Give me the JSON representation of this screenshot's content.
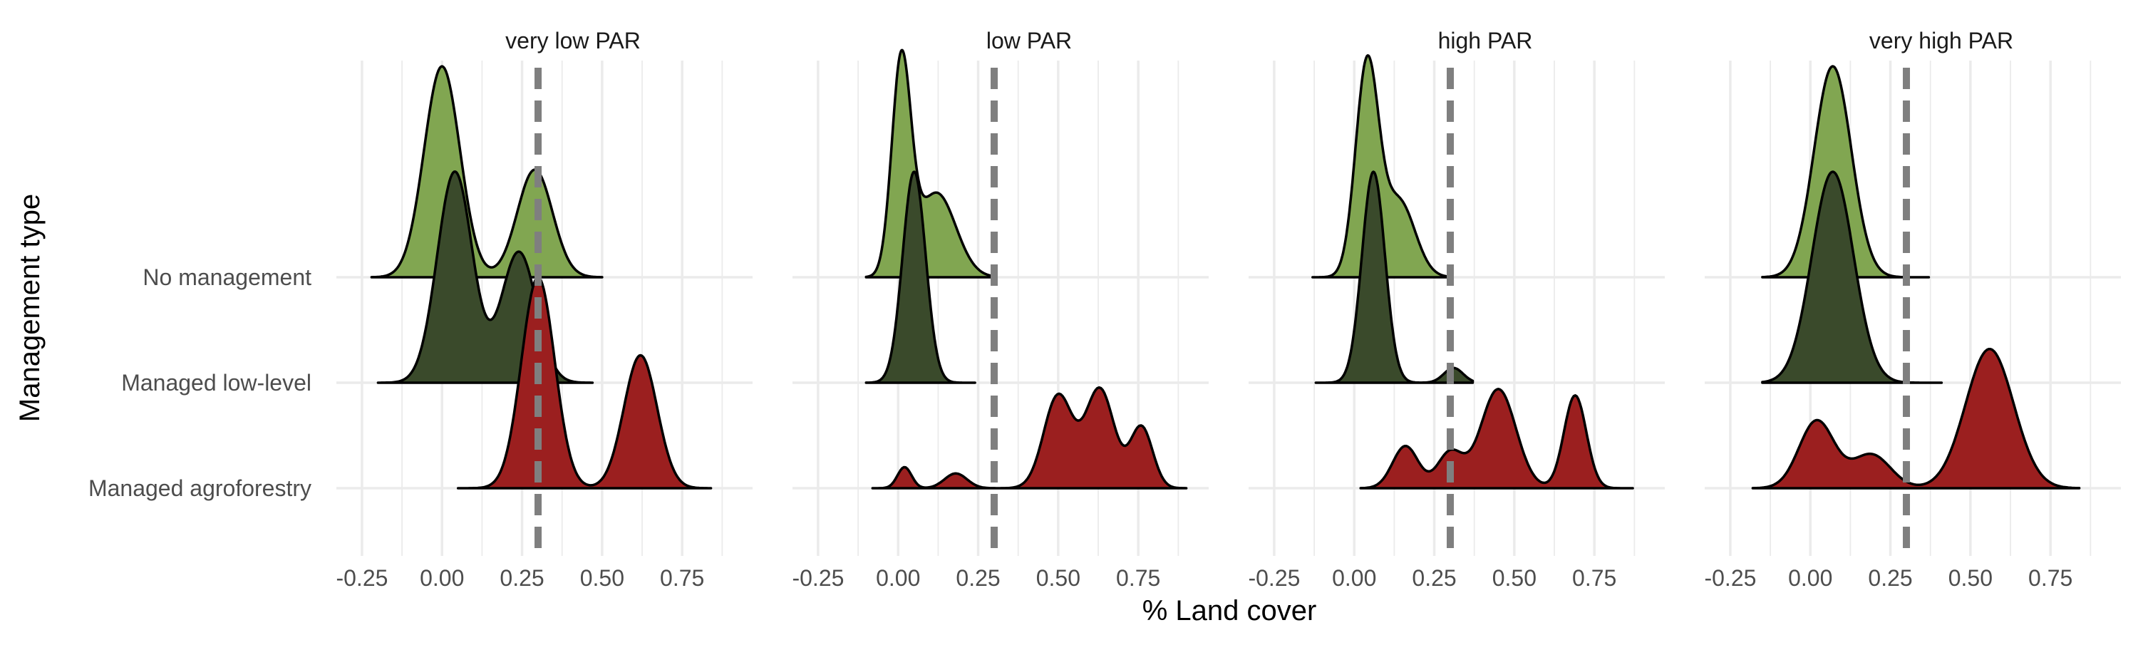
{
  "chart_data": {
    "type": "ridgeline",
    "x_axis": {
      "label": "% Land cover",
      "ticks": [
        -0.25,
        0.0,
        0.25,
        0.5,
        0.75
      ],
      "tick_labels": [
        "-0.25",
        "0.00",
        "0.25",
        "0.50",
        "0.75"
      ],
      "range": [
        -0.33,
        0.97
      ]
    },
    "y_axis": {
      "label": "Management type",
      "categories": [
        "Managed agroforestry",
        "Managed low-level",
        "No management"
      ]
    },
    "facets": [
      "very low PAR",
      "low PAR",
      "high PAR",
      "very high PAR"
    ],
    "reference_line_x": 0.3,
    "grid": true,
    "colors": {
      "No management": "#81a651",
      "Managed low-level": "#3a4a2b",
      "Managed agroforestry": "#9b1f1f",
      "reference_line": "#7f7f7f"
    },
    "panels": [
      {
        "facet": "very low PAR",
        "ridges": [
          {
            "category": "No management",
            "range": [
              -0.22,
              0.5
            ],
            "peaks": [
              [
                0.0,
                0.056,
                1.0
              ],
              [
                0.29,
                0.055,
                0.51
              ]
            ]
          },
          {
            "category": "Managed low-level",
            "range": [
              -0.2,
              0.47
            ],
            "peaks": [
              [
                0.04,
                0.055,
                1.0
              ],
              [
                0.24,
                0.055,
                0.62
              ]
            ]
          },
          {
            "category": "Managed agroforestry",
            "range": [
              0.05,
              0.84
            ],
            "peaks": [
              [
                0.3,
                0.052,
                1.0
              ],
              [
                0.62,
                0.052,
                0.63
              ]
            ]
          }
        ]
      },
      {
        "facet": "low PAR",
        "ridges": [
          {
            "category": "No management",
            "range": [
              -0.1,
              0.3
            ],
            "peaks": [
              [
                0.01,
                0.03,
                1.0
              ],
              [
                0.12,
                0.06,
                0.4
              ]
            ]
          },
          {
            "category": "Managed low-level",
            "range": [
              -0.1,
              0.24
            ],
            "peaks": [
              [
                0.05,
                0.036,
                1.0
              ]
            ]
          },
          {
            "category": "Managed agroforestry",
            "range": [
              -0.08,
              0.9
            ],
            "peaks": [
              [
                0.02,
                0.022,
                0.1
              ],
              [
                0.18,
                0.035,
                0.07
              ],
              [
                0.5,
                0.045,
                0.44
              ],
              [
                0.63,
                0.045,
                0.47
              ],
              [
                0.76,
                0.035,
                0.29
              ]
            ]
          }
        ]
      },
      {
        "facet": "high PAR",
        "ridges": [
          {
            "category": "No management",
            "range": [
              -0.13,
              0.3
            ],
            "peaks": [
              [
                0.04,
                0.036,
                1.0
              ],
              [
                0.14,
                0.05,
                0.36
              ]
            ]
          },
          {
            "category": "Managed low-level",
            "range": [
              -0.12,
              0.37
            ],
            "peaks": [
              [
                0.06,
                0.036,
                1.0
              ],
              [
                0.31,
                0.03,
                0.07
              ]
            ]
          },
          {
            "category": "Managed agroforestry",
            "range": [
              0.02,
              0.87
            ],
            "peaks": [
              [
                0.16,
                0.04,
                0.2
              ],
              [
                0.3,
                0.04,
                0.17
              ],
              [
                0.45,
                0.055,
                0.47
              ],
              [
                0.69,
                0.035,
                0.44
              ]
            ]
          }
        ]
      },
      {
        "facet": "very high PAR",
        "ridges": [
          {
            "category": "No management",
            "range": [
              -0.15,
              0.37
            ],
            "peaks": [
              [
                0.07,
                0.058,
                1.0
              ]
            ]
          },
          {
            "category": "Managed low-level",
            "range": [
              -0.15,
              0.41
            ],
            "peaks": [
              [
                0.07,
                0.065,
                1.0
              ]
            ]
          },
          {
            "category": "Managed agroforestry",
            "range": [
              -0.18,
              0.84
            ],
            "peaks": [
              [
                0.02,
                0.055,
                0.32
              ],
              [
                0.19,
                0.06,
                0.16
              ],
              [
                0.56,
                0.075,
                0.66
              ]
            ]
          }
        ]
      }
    ]
  }
}
